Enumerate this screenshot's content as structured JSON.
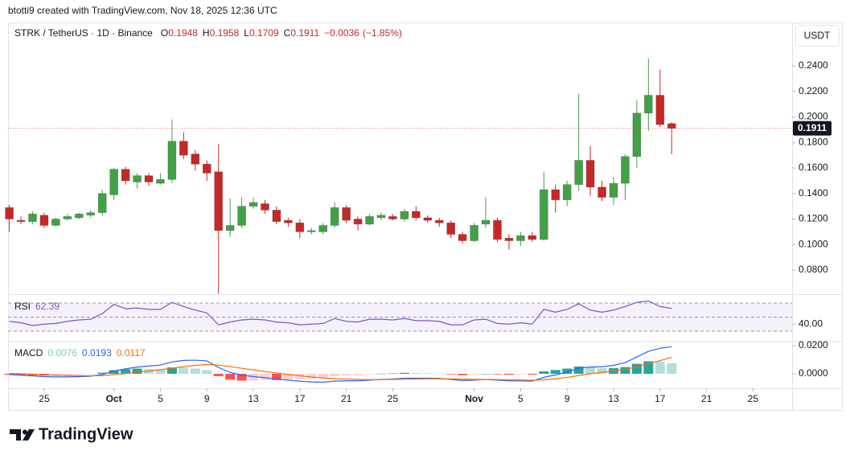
{
  "header": {
    "text": "btotti9 created with TradingView.com, Nov 18, 2025 12:36 UTC"
  },
  "footer": {
    "logo": "TradingView"
  },
  "chart_data": {
    "type": "candlestick",
    "symbol": "STRK / TetherUS · 1D · Binance",
    "currency": "USDT",
    "ohlc_labels": [
      "O",
      "H",
      "L",
      "C"
    ],
    "change": {
      "value": -0.0036,
      "label": "−0.0036"
    },
    "change_pct": {
      "value": -1.85,
      "label": "(−1.85%)"
    },
    "up_color": "#43a047",
    "down_color": "#c62828",
    "grid": false,
    "categories": [
      null,
      null,
      null,
      "25",
      null,
      null,
      null,
      null,
      null,
      "Oct",
      null,
      null,
      null,
      "5",
      null,
      null,
      null,
      "9",
      null,
      null,
      null,
      "13",
      null,
      null,
      null,
      "17",
      null,
      null,
      null,
      "21",
      null,
      null,
      null,
      "25",
      null,
      null,
      null,
      null,
      null,
      null,
      "Nov",
      null,
      null,
      null,
      "5",
      null,
      null,
      null,
      "9",
      null,
      null,
      null,
      "13",
      null,
      null,
      null,
      "17",
      null,
      null,
      null,
      "21",
      null,
      null,
      null,
      "25",
      null,
      null,
      null
    ],
    "open": [
      0.129,
      0.119,
      0.118,
      0.123,
      0.115,
      0.12,
      0.121,
      0.123,
      0.125,
      0.139,
      0.159,
      0.149,
      0.154,
      0.148,
      0.151,
      0.181,
      0.171,
      0.163,
      0.157,
      0.111,
      0.115,
      0.13,
      0.132,
      0.127,
      0.119,
      0.117,
      0.11,
      0.11,
      0.115,
      0.129,
      0.12,
      0.116,
      0.121,
      0.122,
      0.12,
      0.126,
      0.121,
      0.119,
      0.117,
      0.108,
      0.103,
      0.116,
      0.119,
      0.105,
      0.103,
      0.107,
      0.104,
      0.143,
      0.135,
      0.147,
      0.166,
      0.145,
      0.137,
      0.148,
      0.169,
      0.203,
      0.217,
      0.1948,
      null,
      null,
      null,
      null,
      null,
      null,
      null,
      null,
      null,
      null
    ],
    "high": [
      0.131,
      0.122,
      0.126,
      0.125,
      0.121,
      0.124,
      0.125,
      0.127,
      0.143,
      0.16,
      0.161,
      0.156,
      0.156,
      0.156,
      0.198,
      0.188,
      0.174,
      0.166,
      0.179,
      0.136,
      0.137,
      0.137,
      0.135,
      0.13,
      0.121,
      0.12,
      0.113,
      0.117,
      0.133,
      0.131,
      0.122,
      0.124,
      0.125,
      0.124,
      0.128,
      0.13,
      0.123,
      0.121,
      0.119,
      0.11,
      0.117,
      0.137,
      0.121,
      0.108,
      0.11,
      0.11,
      0.157,
      0.147,
      0.15,
      0.218,
      0.177,
      0.15,
      0.153,
      0.171,
      0.213,
      0.246,
      0.237,
      0.1958,
      null,
      null,
      null,
      null,
      null,
      null,
      null,
      null,
      null,
      null
    ],
    "low": [
      0.11,
      0.116,
      0.116,
      0.113,
      0.114,
      0.119,
      0.12,
      0.121,
      0.123,
      0.135,
      0.147,
      0.144,
      0.146,
      0.147,
      0.148,
      0.167,
      0.158,
      0.15,
      0.0615,
      0.106,
      0.113,
      0.128,
      0.124,
      0.116,
      0.114,
      0.105,
      0.108,
      0.108,
      0.113,
      0.117,
      0.111,
      0.115,
      0.119,
      0.119,
      0.118,
      0.119,
      0.117,
      0.114,
      0.105,
      0.101,
      0.102,
      0.113,
      0.102,
      0.096,
      0.099,
      0.102,
      0.103,
      0.125,
      0.13,
      0.142,
      0.138,
      0.134,
      0.131,
      0.135,
      0.16,
      0.189,
      0.192,
      0.1709,
      null,
      null,
      null,
      null,
      null,
      null,
      null,
      null,
      null,
      null
    ],
    "close": [
      0.12,
      0.118,
      0.124,
      0.115,
      0.12,
      0.122,
      0.124,
      0.125,
      0.14,
      0.159,
      0.15,
      0.154,
      0.149,
      0.151,
      0.181,
      0.17,
      0.163,
      0.156,
      0.111,
      0.115,
      0.13,
      0.133,
      0.127,
      0.118,
      0.117,
      0.11,
      0.111,
      0.115,
      0.129,
      0.119,
      0.116,
      0.122,
      0.123,
      0.12,
      0.126,
      0.121,
      0.119,
      0.117,
      0.108,
      0.103,
      0.115,
      0.119,
      0.104,
      0.103,
      0.107,
      0.104,
      0.143,
      0.135,
      0.147,
      0.166,
      0.145,
      0.137,
      0.148,
      0.169,
      0.203,
      0.217,
      0.194,
      0.1911,
      null,
      null,
      null,
      null,
      null,
      null,
      null,
      null,
      null,
      null
    ],
    "ylim": [
      0.0611,
      0.274
    ],
    "yticks": [
      {
        "value": 0.08,
        "label": "0.0800"
      },
      {
        "value": 0.1,
        "label": "0.1000"
      },
      {
        "value": 0.12,
        "label": "0.1200"
      },
      {
        "value": 0.14,
        "label": "0.1400"
      },
      {
        "value": 0.16,
        "label": "0.1600"
      },
      {
        "value": 0.18,
        "label": "0.1800"
      },
      {
        "value": 0.2,
        "label": "0.2000"
      },
      {
        "value": 0.22,
        "label": "0.2200"
      },
      {
        "value": 0.24,
        "label": "0.2400"
      }
    ],
    "rsi": {
      "name": "RSI",
      "color": "#7e57c2",
      "band_color": "#ede7f6",
      "values": [
        44,
        42,
        38,
        40,
        41,
        44,
        46,
        47,
        55,
        68,
        62,
        63,
        61,
        61,
        71,
        65,
        60,
        56,
        39,
        43,
        46,
        47,
        46,
        43,
        42,
        39,
        40,
        41,
        48,
        44,
        43,
        47,
        47,
        46,
        48,
        45,
        45,
        44,
        39,
        39,
        46,
        47,
        41,
        40,
        42,
        40,
        61,
        57,
        61,
        69,
        60,
        57,
        60,
        65,
        71,
        73,
        65,
        62.39,
        null,
        null,
        null,
        null,
        null,
        null,
        null,
        null,
        null,
        null
      ],
      "bands": [
        30,
        50,
        70
      ],
      "ylim": [
        16.3,
        81.4
      ],
      "yticks": [
        {
          "value": 40,
          "label": "40.00"
        }
      ]
    },
    "macd": {
      "name": "MACD",
      "histogram": {
        "colors": [
          "#26a69a",
          "#b2dfdb",
          "#ff5252",
          "#ffcdd2"
        ],
        "values": [
          -0.0007,
          -0.001,
          -0.0012,
          -0.0013,
          -0.0012,
          -0.001,
          -0.0006,
          -0.0003,
          0.0008,
          0.0026,
          0.0033,
          0.0037,
          0.0035,
          0.0034,
          0.0045,
          0.0044,
          0.0037,
          0.0026,
          -0.0017,
          -0.0042,
          -0.0049,
          -0.0048,
          -0.0044,
          -0.0044,
          -0.004,
          -0.0039,
          -0.0035,
          -0.003,
          -0.0017,
          -0.0012,
          -0.001,
          -0.0004,
          0.0001,
          0.0003,
          0.0007,
          0.0006,
          0.0005,
          0.0003,
          -0.0004,
          -0.001,
          -0.0005,
          0,
          -0.0004,
          -0.0007,
          -0.0006,
          -0.0006,
          0.0017,
          0.0027,
          0.0037,
          0.0052,
          0.0048,
          0.004,
          0.004,
          0.0048,
          0.0071,
          0.0089,
          0.0088,
          0.0076,
          null,
          null,
          null,
          null,
          null,
          null,
          null,
          null,
          null,
          null
        ]
      },
      "macd": {
        "color": "#2962ff",
        "values": [
          -0.0005,
          -0.001,
          -0.0015,
          -0.002,
          -0.0022,
          -0.0022,
          -0.002,
          -0.0017,
          -0.0005,
          0.002,
          0.0035,
          0.0048,
          0.0055,
          0.0062,
          0.0085,
          0.0095,
          0.0097,
          0.0092,
          0.0045,
          0.001,
          -0.001,
          -0.002,
          -0.0028,
          -0.0038,
          -0.0045,
          -0.0053,
          -0.0058,
          -0.006,
          -0.0052,
          -0.005,
          -0.005,
          -0.0045,
          -0.004,
          -0.0037,
          -0.0032,
          -0.0031,
          -0.0031,
          -0.0032,
          -0.004,
          -0.0048,
          -0.0045,
          -0.004,
          -0.0045,
          -0.005,
          -0.005,
          -0.0052,
          -0.0025,
          -0.0008,
          0.0012,
          0.004,
          0.0048,
          0.005,
          0.006,
          0.008,
          0.012,
          0.016,
          0.0182,
          0.0193,
          null,
          null,
          null,
          null,
          null,
          null,
          null,
          null,
          null,
          null
        ]
      },
      "signal": {
        "color": "#ff6d00",
        "values": [
          0.0002,
          0,
          -0.0003,
          -0.0007,
          -0.001,
          -0.0012,
          -0.0014,
          -0.0014,
          -0.0013,
          -0.0006,
          0.0002,
          0.0011,
          0.002,
          0.0029,
          0.004,
          0.0051,
          0.006,
          0.0066,
          0.0062,
          0.0052,
          0.0039,
          0.0028,
          0.0016,
          0.0006,
          -0.0005,
          -0.0014,
          -0.0023,
          -0.003,
          -0.0035,
          -0.0038,
          -0.004,
          -0.0041,
          -0.0041,
          -0.004,
          -0.0039,
          -0.0037,
          -0.0036,
          -0.0035,
          -0.0036,
          -0.0038,
          -0.004,
          -0.004,
          -0.0041,
          -0.0043,
          -0.0044,
          -0.0046,
          -0.0042,
          -0.0035,
          -0.0026,
          -0.0012,
          0,
          0.001,
          0.002,
          0.0032,
          0.0049,
          0.0072,
          0.0094,
          0.0117,
          null,
          null,
          null,
          null,
          null,
          null,
          null,
          null,
          null,
          null
        ]
      },
      "ylim": [
        -0.0103,
        0.0229
      ],
      "yticks": [
        {
          "value": 0.02,
          "label": "0.0200"
        },
        {
          "value": 0,
          "label": "0.0000"
        }
      ]
    }
  }
}
